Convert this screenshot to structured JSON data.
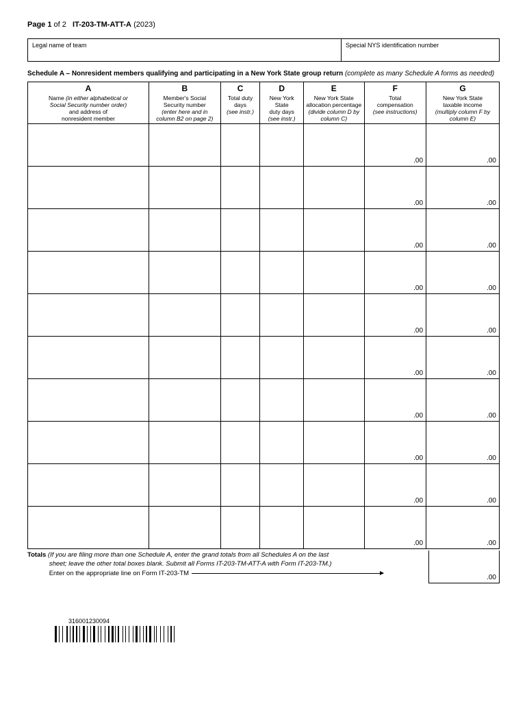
{
  "page_header": {
    "page_label_bold": "Page 1",
    "page_label_rest": " of 2",
    "form_id": "IT-203-TM-ATT-A",
    "year": "(2023)"
  },
  "legal_box": {
    "left_label": "Legal name of team",
    "right_label": "Special NYS identification number"
  },
  "schedule_title": {
    "bold": "Schedule A – Nonresident members qualifying and participating in a New York State group return",
    "italic": " (complete as many Schedule A forms as needed)"
  },
  "columns": [
    {
      "letter": "A",
      "line1": "Name ",
      "italic1": "(in either alphabetical or",
      "italic2": "Social Security number order)",
      "line3": "and address of",
      "line4": "nonresident member",
      "width": "172"
    },
    {
      "letter": "B",
      "line1": "Member's Social",
      "line2": "Security number",
      "italic1": "(enter here and in",
      "italic2": "column B2 on page 2)",
      "width": "102"
    },
    {
      "letter": "C",
      "line1": "Total duty",
      "line2": "days",
      "italic1": "(see instr.)",
      "width": "56"
    },
    {
      "letter": "D",
      "line1": "New York State",
      "line2": "duty days",
      "italic1": "(see instr.)",
      "width": "62"
    },
    {
      "letter": "E",
      "line1": "New York State",
      "line2": "allocation percentage",
      "italic1": "(divide column D by",
      "italic2": "column C)",
      "width": "86"
    },
    {
      "letter": "F",
      "line1": "Total",
      "line2": "compensation",
      "italic1": "(see instructions)",
      "width": "88"
    },
    {
      "letter": "G",
      "line1": "New York State",
      "line2": "taxable income",
      "italic1": "(multiply column F by",
      "italic2": "column E)",
      "width": "104"
    }
  ],
  "row_suffix": ".00",
  "num_rows": 10,
  "totals": {
    "bold": "Totals",
    "italic_line1": "  (If you are filing more than one Schedule A, enter the grand totals from all Schedules A on the last",
    "italic_line2": "sheet; leave the other total boxes blank. Submit all Forms IT-203-TM-ATT-A with Form IT-203-TM.)",
    "enter_line": "Enter on the appropriate line on Form IT-203-TM",
    "box_suffix": ".00"
  },
  "barcode_number": "316001230094",
  "styling": {
    "background": "#ffffff",
    "border_color": "#000000",
    "text_color": "#000000",
    "header_font_size": 11,
    "body_font_size": 10,
    "small_font_size": 9,
    "table_header_font_size": 8.5
  }
}
